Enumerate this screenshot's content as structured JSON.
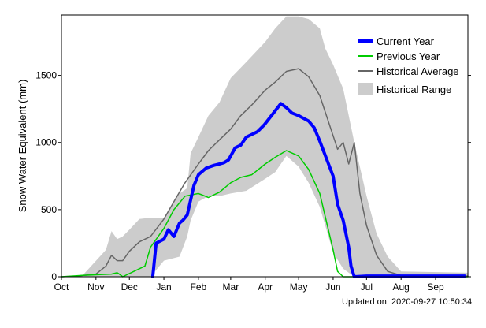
{
  "chart_data": {
    "type": "area",
    "title": "",
    "ylabel": "Snow Water Equivalent (mm)",
    "xlabel": "",
    "x_ticks": [
      "Oct",
      "Nov",
      "Dec",
      "Jan",
      "Feb",
      "Mar",
      "Apr",
      "May",
      "Jun",
      "Jul",
      "Aug",
      "Sep"
    ],
    "xlim": [
      "2019-10-01",
      "2020-09-30"
    ],
    "ylim": [
      0,
      1950
    ],
    "y_ticks": [
      0,
      500,
      1000,
      1500
    ],
    "grid": false,
    "legend": {
      "position": "top-right",
      "entries": [
        "Current Year",
        "Previous Year",
        "Historical Average",
        "Historical Range"
      ]
    },
    "colors": {
      "current": "#0000ff",
      "previous": "#00cc00",
      "average": "#666666",
      "range": "#cccccc"
    },
    "series": [
      {
        "name": "Historical Range",
        "x": [
          "2019-10-01",
          "2019-10-20",
          "2019-11-10",
          "2019-11-15",
          "2019-11-20",
          "2019-11-25",
          "2019-12-01",
          "2019-12-10",
          "2019-12-20",
          "2020-01-01",
          "2020-01-15",
          "2020-01-22",
          "2020-01-25",
          "2020-02-01",
          "2020-02-10",
          "2020-02-20",
          "2020-03-01",
          "2020-03-15",
          "2020-04-01",
          "2020-04-10",
          "2020-04-20",
          "2020-05-01",
          "2020-05-10",
          "2020-05-20",
          "2020-05-25",
          "2020-06-01",
          "2020-06-10",
          "2020-06-20",
          "2020-07-01",
          "2020-07-10",
          "2020-07-20",
          "2020-08-01",
          "2020-09-30"
        ],
        "low": [
          0,
          0,
          0,
          0,
          0,
          0,
          0,
          0,
          0,
          120,
          150,
          300,
          420,
          560,
          600,
          600,
          620,
          640,
          730,
          780,
          900,
          820,
          700,
          520,
          380,
          180,
          60,
          0,
          0,
          0,
          0,
          0,
          0
        ],
        "high": [
          0,
          10,
          200,
          340,
          280,
          300,
          350,
          430,
          440,
          440,
          620,
          660,
          920,
          1040,
          1200,
          1300,
          1480,
          1600,
          1750,
          1850,
          1940,
          1940,
          1920,
          1850,
          1700,
          1580,
          1400,
          1000,
          600,
          320,
          150,
          40,
          30
        ]
      },
      {
        "name": "Historical Average",
        "x": [
          "2019-10-01",
          "2019-10-15",
          "2019-11-01",
          "2019-11-10",
          "2019-11-15",
          "2019-11-20",
          "2019-11-25",
          "2019-12-01",
          "2019-12-10",
          "2019-12-20",
          "2020-01-01",
          "2020-01-10",
          "2020-01-20",
          "2020-02-01",
          "2020-02-10",
          "2020-02-20",
          "2020-03-01",
          "2020-03-10",
          "2020-03-20",
          "2020-04-01",
          "2020-04-10",
          "2020-04-20",
          "2020-05-01",
          "2020-05-10",
          "2020-05-20",
          "2020-06-01",
          "2020-06-05",
          "2020-06-10",
          "2020-06-15",
          "2020-06-20",
          "2020-06-25",
          "2020-07-01",
          "2020-07-10",
          "2020-07-20",
          "2020-08-01",
          "2020-08-15",
          "2020-09-30"
        ],
        "values": [
          0,
          5,
          20,
          80,
          160,
          120,
          120,
          190,
          260,
          300,
          430,
          560,
          700,
          840,
          940,
          1020,
          1100,
          1200,
          1280,
          1390,
          1450,
          1530,
          1550,
          1490,
          1350,
          1050,
          950,
          1000,
          840,
          1000,
          620,
          380,
          160,
          40,
          10,
          5,
          5
        ]
      },
      {
        "name": "Previous Year",
        "x": [
          "2019-10-01",
          "2019-10-20",
          "2019-11-15",
          "2019-11-20",
          "2019-11-22",
          "2019-11-25",
          "2019-12-15",
          "2019-12-20",
          "2020-01-01",
          "2020-01-10",
          "2020-01-20",
          "2020-02-01",
          "2020-02-10",
          "2020-02-20",
          "2020-03-01",
          "2020-03-10",
          "2020-03-20",
          "2020-04-01",
          "2020-04-10",
          "2020-04-20",
          "2020-05-01",
          "2020-05-10",
          "2020-05-20",
          "2020-06-01",
          "2020-06-05",
          "2020-06-10",
          "2020-09-30"
        ],
        "values": [
          0,
          10,
          20,
          30,
          20,
          0,
          80,
          220,
          360,
          500,
          600,
          620,
          590,
          630,
          700,
          740,
          760,
          840,
          890,
          940,
          900,
          800,
          620,
          200,
          40,
          0,
          0
        ]
      },
      {
        "name": "Current Year",
        "x": [
          "2019-12-22",
          "2019-12-25",
          "2020-01-01",
          "2020-01-05",
          "2020-01-10",
          "2020-01-15",
          "2020-01-18",
          "2020-01-22",
          "2020-01-28",
          "2020-02-01",
          "2020-02-08",
          "2020-02-15",
          "2020-02-20",
          "2020-02-24",
          "2020-02-28",
          "2020-03-05",
          "2020-03-10",
          "2020-03-15",
          "2020-03-20",
          "2020-03-25",
          "2020-03-31",
          "2020-04-15",
          "2020-04-20",
          "2020-04-25",
          "2020-05-01",
          "2020-05-10",
          "2020-05-15",
          "2020-05-20",
          "2020-06-01",
          "2020-06-05",
          "2020-06-10",
          "2020-06-15",
          "2020-06-17",
          "2020-06-20",
          "2020-07-01",
          "2020-08-01",
          "2020-09-27"
        ],
        "values": [
          0,
          250,
          280,
          350,
          300,
          400,
          420,
          460,
          680,
          760,
          810,
          830,
          840,
          850,
          870,
          960,
          980,
          1040,
          1060,
          1080,
          1130,
          1290,
          1260,
          1220,
          1200,
          1160,
          1110,
          1010,
          750,
          540,
          420,
          220,
          80,
          0,
          5,
          5,
          5
        ]
      }
    ]
  },
  "footer": {
    "updated_label": "Updated on",
    "updated_value": "2020-09-27 10:50:34"
  }
}
